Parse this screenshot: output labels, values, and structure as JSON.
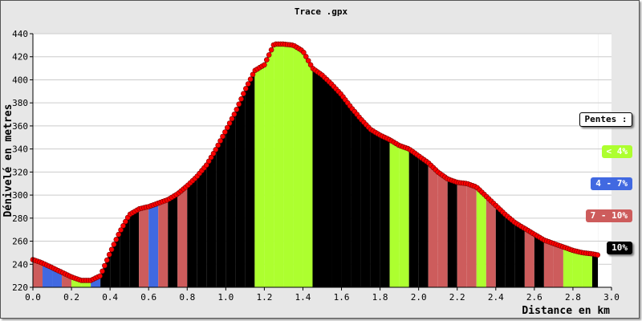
{
  "chart_data": {
    "type": "area",
    "title": "Trace .gpx",
    "xlabel": "Distance en km",
    "ylabel": "Dénivelé en metres",
    "xlim": [
      0.0,
      3.0
    ],
    "ylim": [
      220,
      440
    ],
    "x_ticks": [
      "0.0",
      "0.2",
      "0.4",
      "0.6",
      "0.8",
      "1.0",
      "1.2",
      "1.4",
      "1.6",
      "1.8",
      "2.0",
      "2.2",
      "2.4",
      "2.6",
      "2.8",
      "3.0"
    ],
    "y_ticks": [
      "220",
      "240",
      "260",
      "280",
      "300",
      "320",
      "340",
      "360",
      "380",
      "400",
      "420",
      "440"
    ],
    "grid": "horizontal",
    "profile": {
      "x": [
        0.0,
        0.05,
        0.1,
        0.15,
        0.2,
        0.25,
        0.3,
        0.35,
        0.4,
        0.45,
        0.5,
        0.55,
        0.6,
        0.65,
        0.7,
        0.75,
        0.8,
        0.85,
        0.9,
        0.95,
        1.0,
        1.05,
        1.1,
        1.15,
        1.2,
        1.25,
        1.3,
        1.35,
        1.4,
        1.45,
        1.5,
        1.55,
        1.6,
        1.65,
        1.7,
        1.75,
        1.8,
        1.85,
        1.9,
        1.95,
        2.0,
        2.05,
        2.1,
        2.15,
        2.2,
        2.25,
        2.3,
        2.35,
        2.4,
        2.45,
        2.5,
        2.55,
        2.6,
        2.65,
        2.7,
        2.75,
        2.8,
        2.85,
        2.9,
        2.93
      ],
      "y": [
        244,
        241,
        237,
        233,
        229,
        226,
        226,
        230,
        250,
        268,
        283,
        288,
        290,
        293,
        296,
        301,
        308,
        316,
        326,
        340,
        356,
        372,
        391,
        408,
        413,
        431,
        431,
        430,
        425,
        410,
        404,
        396,
        387,
        376,
        366,
        357,
        352,
        348,
        343,
        340,
        334,
        328,
        320,
        314,
        311,
        310,
        307,
        299,
        291,
        283,
        276,
        271,
        266,
        261,
        258,
        255,
        252,
        250,
        249,
        248
      ]
    },
    "slope_bands": {
      "x": [
        0.0,
        0.05,
        0.1,
        0.15,
        0.2,
        0.25,
        0.3,
        0.35,
        0.4,
        0.45,
        0.5,
        0.55,
        0.6,
        0.65,
        0.7,
        0.75,
        0.8,
        0.85,
        0.9,
        0.95,
        1.0,
        1.05,
        1.1,
        1.15,
        1.2,
        1.25,
        1.3,
        1.35,
        1.4,
        1.45,
        1.5,
        1.55,
        1.6,
        1.65,
        1.7,
        1.75,
        1.8,
        1.85,
        1.9,
        1.95,
        2.0,
        2.05,
        2.1,
        2.15,
        2.2,
        2.25,
        2.3,
        2.35,
        2.4,
        2.45,
        2.5,
        2.55,
        2.6,
        2.65,
        2.7,
        2.75,
        2.8,
        2.85,
        2.9
      ],
      "class": [
        2,
        1,
        1,
        2,
        0,
        0,
        1,
        3,
        3,
        3,
        3,
        2,
        1,
        2,
        3,
        2,
        3,
        3,
        3,
        3,
        3,
        3,
        3,
        0,
        0,
        0,
        0,
        0,
        0,
        3,
        3,
        3,
        3,
        3,
        3,
        3,
        3,
        0,
        0,
        3,
        3,
        2,
        2,
        3,
        2,
        2,
        0,
        2,
        3,
        3,
        3,
        2,
        3,
        2,
        2,
        0,
        0,
        0,
        3
      ]
    },
    "legend": {
      "title": "Pentes :",
      "entries": [
        {
          "label": "< 4%",
          "color": "#adff2f",
          "text_color": "#ffffff"
        },
        {
          "label": "4 - 7%",
          "color": "#4169e1",
          "text_color": "#ffffff"
        },
        {
          "label": "7 - 10%",
          "color": "#cd5c5c",
          "text_color": "#ffffff"
        },
        {
          "label": "10%",
          "color": "#000000",
          "text_color": "#ffffff"
        }
      ],
      "placement": "right"
    },
    "colors": {
      "line": "#ff0000",
      "plot_background": "#ffffff",
      "frame_background": "#e7e7e7",
      "grid": "#cccccc"
    }
  }
}
